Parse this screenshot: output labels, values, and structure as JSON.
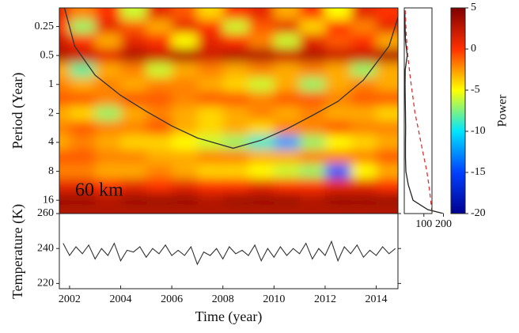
{
  "chart_data": [
    {
      "type": "heatmap",
      "annotation": "60 km",
      "ylabel": "Period (Year)",
      "ylog2": true,
      "ylim": [
        0.16,
        22
      ],
      "yticks": [
        0.25,
        0.5,
        1,
        2,
        4,
        8,
        16
      ],
      "xlim": [
        2001.6,
        2014.85
      ],
      "times": [
        2001.75,
        2002.75,
        2003.75,
        2004.75,
        2005.75,
        2006.75,
        2007.75,
        2008.75,
        2009.75,
        2010.75,
        2011.75,
        2012.75,
        2013.75,
        2014.75
      ],
      "periods": [
        0.18,
        0.25,
        0.35,
        0.5,
        0.71,
        1,
        1.41,
        2,
        2.83,
        4,
        5.66,
        8,
        11.3,
        16,
        20
      ],
      "power": [
        [
          1,
          -2,
          0,
          -6,
          1,
          -1,
          -4,
          0,
          1,
          -3,
          0,
          -5,
          1,
          0
        ],
        [
          0,
          -7,
          1,
          -1,
          -3,
          1,
          0,
          -6,
          -1,
          1,
          -4,
          0,
          -2,
          1
        ],
        [
          2,
          0,
          -3,
          1,
          0,
          -5,
          1,
          0,
          -2,
          -6,
          1,
          -1,
          0,
          -3
        ],
        [
          3,
          2,
          1,
          3,
          2,
          3,
          2,
          3,
          3,
          2,
          3,
          2,
          2,
          3
        ],
        [
          -3,
          -8,
          -3,
          -2,
          -6,
          -3,
          -2,
          -3,
          -2,
          -3,
          -2,
          -3,
          -7,
          -3
        ],
        [
          -2,
          -3,
          -2,
          -3,
          -2,
          -2,
          -3,
          -4,
          -6,
          -3,
          -7,
          -3,
          -2,
          -3
        ],
        [
          -1,
          -1,
          -2,
          -1,
          -1,
          -2,
          -1,
          -1,
          -2,
          -1,
          -1,
          -2,
          -1,
          -1
        ],
        [
          -3,
          -4,
          -7,
          -3,
          -2,
          -3,
          -4,
          -3,
          -2,
          -3,
          -2,
          -3,
          -3,
          -4
        ],
        [
          -2,
          -1,
          -2,
          -2,
          -1,
          -3,
          -4,
          -3,
          -4,
          -2,
          -2,
          -1,
          -2,
          -2
        ],
        [
          -3,
          -2,
          -3,
          -4,
          -4,
          -5,
          -6,
          -7,
          -9,
          -12,
          -7,
          -5,
          -4,
          -3
        ],
        [
          -1,
          -1,
          -2,
          -2,
          -3,
          -3,
          -2,
          -2,
          -3,
          -3,
          -2,
          -2,
          -2,
          -1
        ],
        [
          -2,
          -2,
          -3,
          -3,
          -2,
          -3,
          -4,
          -4,
          -5,
          -6,
          -7,
          -14,
          -5,
          -3
        ],
        [
          1,
          1,
          0,
          1,
          0,
          1,
          0,
          0,
          1,
          0,
          0,
          1,
          1,
          0
        ],
        [
          4,
          4,
          3,
          4,
          4,
          4,
          3,
          4,
          4,
          4,
          3,
          4,
          4,
          4
        ],
        [
          3,
          3,
          3,
          3,
          3,
          3,
          3,
          3,
          3,
          3,
          3,
          3,
          3,
          3
        ]
      ],
      "clabel": "Power",
      "clim": [
        -20,
        5
      ],
      "cticks": [
        5,
        0,
        -5,
        -10,
        -15,
        -20
      ],
      "colors": [
        "#00008f",
        "#0040ff",
        "#00e5ff",
        "#ffff00",
        "#ff3000",
        "#800000"
      ],
      "coi": {
        "color": "#333333",
        "x": [
          2001.8,
          2002.2,
          2003,
          2004,
          2005,
          2006,
          2007,
          2008.4,
          2009.5,
          2010.5,
          2011.5,
          2012.5,
          2013.5,
          2014.5,
          2014.85
        ],
        "y": [
          0.16,
          0.4,
          0.8,
          1.3,
          1.9,
          2.7,
          3.6,
          4.6,
          3.8,
          2.9,
          2.1,
          1.5,
          0.9,
          0.4,
          0.2
        ]
      }
    },
    {
      "type": "line",
      "xlim": [
        0,
        210
      ],
      "xticks": [
        100,
        200
      ],
      "periods": [
        0.17,
        0.25,
        0.35,
        0.5,
        0.7,
        1,
        1.4,
        2,
        2.8,
        4,
        5.7,
        8,
        11,
        16,
        20,
        22
      ],
      "series": [
        {
          "color": "#222222",
          "dash": false,
          "values": [
            3,
            4,
            6,
            15,
            5,
            4,
            5,
            6,
            7,
            6,
            6,
            8,
            20,
            45,
            120,
            200
          ]
        },
        {
          "color": "#e03030",
          "dash": true,
          "values": [
            5,
            8,
            12,
            18,
            26,
            35,
            45,
            55,
            70,
            85,
            100,
            115,
            125,
            135,
            140,
            145
          ]
        }
      ]
    },
    {
      "type": "line",
      "ylabel": "Temperature (K)",
      "xlabel": "Time (year)",
      "xlim": [
        2001.6,
        2014.85
      ],
      "xticks": [
        2002,
        2004,
        2006,
        2008,
        2010,
        2012,
        2014
      ],
      "ylim": [
        217,
        260
      ],
      "yticks": [
        220,
        240,
        260
      ],
      "x": [
        2001.75,
        2002,
        2002.25,
        2002.5,
        2002.75,
        2003,
        2003.25,
        2003.5,
        2003.75,
        2004,
        2004.25,
        2004.5,
        2004.75,
        2005,
        2005.25,
        2005.5,
        2005.75,
        2006,
        2006.25,
        2006.5,
        2006.75,
        2007,
        2007.25,
        2007.5,
        2007.75,
        2008,
        2008.25,
        2008.5,
        2008.75,
        2009,
        2009.25,
        2009.5,
        2009.75,
        2010,
        2010.25,
        2010.5,
        2010.75,
        2011,
        2011.25,
        2011.5,
        2011.75,
        2012,
        2012.25,
        2012.5,
        2012.75,
        2013,
        2013.25,
        2013.5,
        2013.75,
        2014,
        2014.25,
        2014.5,
        2014.75
      ],
      "series": [
        {
          "color": "#333333",
          "values": [
            243,
            236,
            241,
            237,
            242,
            234,
            240,
            236,
            243,
            233,
            239,
            238,
            241,
            235,
            240,
            237,
            242,
            236,
            239,
            236,
            241,
            231,
            238,
            236,
            240,
            234,
            241,
            237,
            239,
            236,
            242,
            233,
            240,
            235,
            241,
            236,
            240,
            237,
            243,
            234,
            240,
            236,
            244,
            233,
            241,
            237,
            242,
            235,
            239,
            236,
            241,
            237,
            240
          ]
        }
      ]
    }
  ]
}
